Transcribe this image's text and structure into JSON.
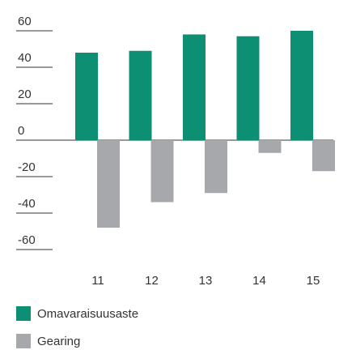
{
  "chart_data": {
    "type": "bar",
    "categories": [
      "11",
      "12",
      "13",
      "14",
      "15"
    ],
    "series": [
      {
        "name": "Omavaraisuusaste",
        "color": "#0d8f74",
        "values": [
          48,
          49,
          58,
          57,
          60
        ]
      },
      {
        "name": "Gearing",
        "color": "#a7a8ab",
        "values": [
          -48,
          -34,
          -29,
          -7,
          -17
        ]
      }
    ],
    "ylim": [
      -60,
      60
    ],
    "yticks": [
      -60,
      -40,
      -20,
      0,
      20,
      40,
      60
    ]
  }
}
